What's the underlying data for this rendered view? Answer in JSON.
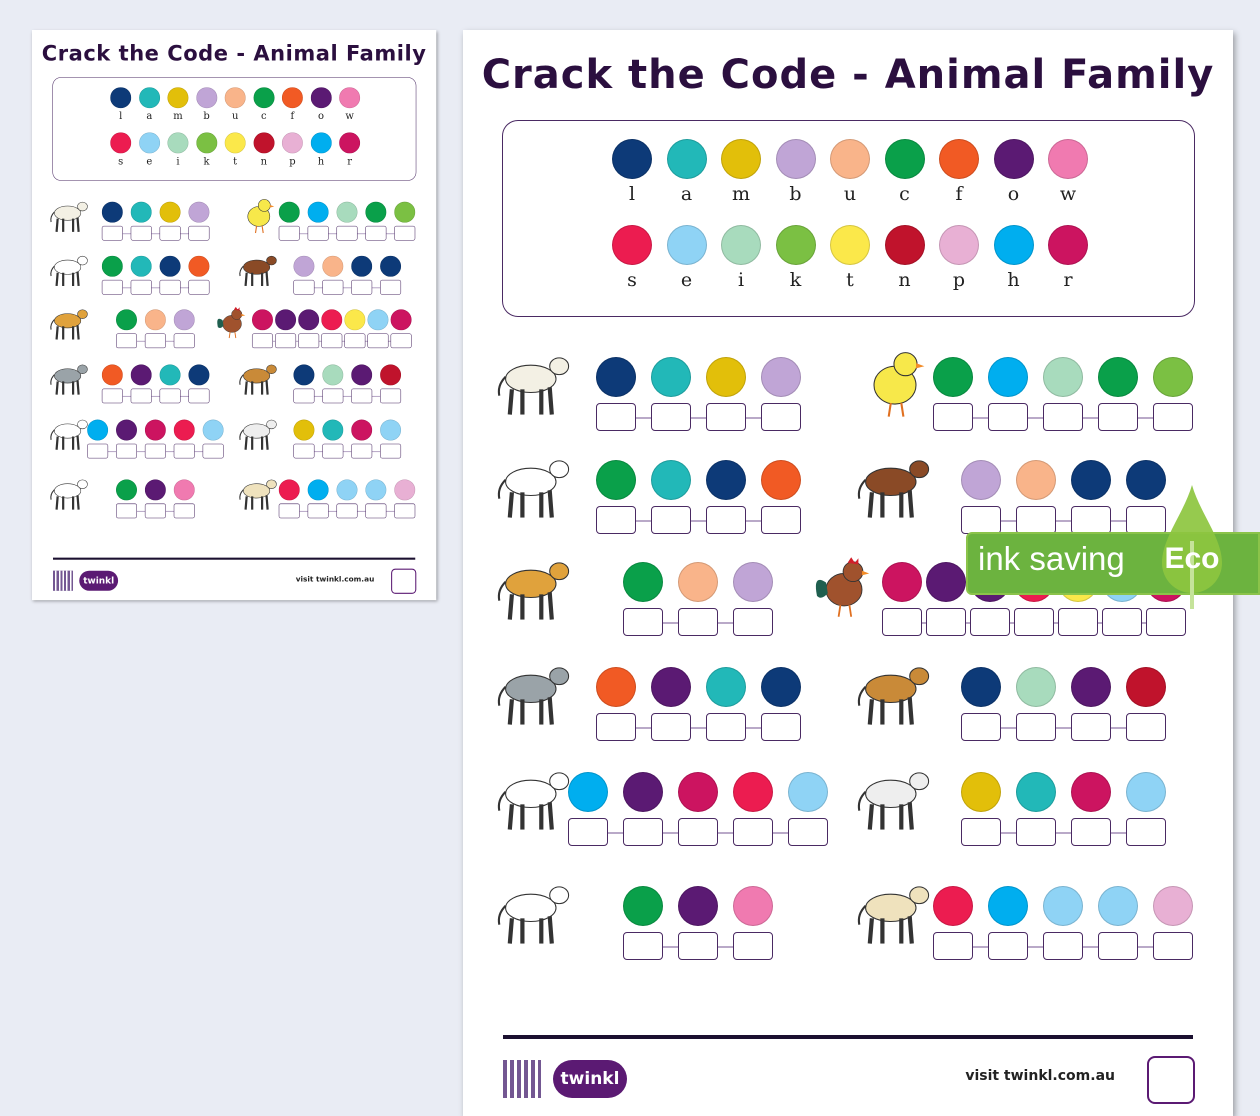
{
  "title": "Crack the Code - Animal Family",
  "key": [
    [
      {
        "letter": "l",
        "color": "#0d3a78"
      },
      {
        "letter": "a",
        "color": "#22b8b8"
      },
      {
        "letter": "m",
        "color": "#e2bf0a"
      },
      {
        "letter": "b",
        "color": "#c0a5d6"
      },
      {
        "letter": "u",
        "color": "#f9b48a"
      },
      {
        "letter": "c",
        "color": "#0aa04a"
      },
      {
        "letter": "f",
        "color": "#f15a24"
      },
      {
        "letter": "o",
        "color": "#5b1a73"
      },
      {
        "letter": "w",
        "color": "#f07ab0"
      }
    ],
    [
      {
        "letter": "s",
        "color": "#ec1c50"
      },
      {
        "letter": "e",
        "color": "#8fd3f5"
      },
      {
        "letter": "i",
        "color": "#a8dbbd"
      },
      {
        "letter": "k",
        "color": "#7bc043"
      },
      {
        "letter": "t",
        "color": "#fbe84a"
      },
      {
        "letter": "n",
        "color": "#c0132c"
      },
      {
        "letter": "p",
        "color": "#e8b0d4"
      },
      {
        "letter": "h",
        "color": "#00aeef"
      },
      {
        "letter": "r",
        "color": "#cc1460"
      }
    ]
  ],
  "puzzles": [
    [
      {
        "animal_icon": "lamb-icon",
        "code": [
          "#0d3a78",
          "#22b8b8",
          "#e2bf0a",
          "#c0a5d6"
        ]
      },
      {
        "animal_icon": "chick-icon",
        "code": [
          "#0aa04a",
          "#00aeef",
          "#a8dbbd",
          "#0aa04a",
          "#7bc043"
        ]
      }
    ],
    [
      {
        "animal_icon": "calf-icon",
        "code": [
          "#0aa04a",
          "#22b8b8",
          "#0d3a78",
          "#f15a24"
        ]
      },
      {
        "animal_icon": "bull-icon",
        "code": [
          "#c0a5d6",
          "#f9b48a",
          "#0d3a78",
          "#0d3a78"
        ]
      }
    ],
    [
      {
        "animal_icon": "cub-icon",
        "code": [
          "#0aa04a",
          "#f9b48a",
          "#c0a5d6"
        ]
      },
      {
        "animal_icon": "rooster-icon",
        "code": [
          "#cc1460",
          "#5b1a73",
          "#5b1a73",
          "#ec1c50",
          "#fbe84a",
          "#8fd3f5",
          "#cc1460"
        ]
      }
    ],
    [
      {
        "animal_icon": "foal-icon",
        "code": [
          "#f15a24",
          "#5b1a73",
          "#22b8b8",
          "#0d3a78"
        ]
      },
      {
        "animal_icon": "lion-icon",
        "code": [
          "#0d3a78",
          "#a8dbbd",
          "#5b1a73",
          "#c0132c"
        ]
      }
    ],
    [
      {
        "animal_icon": "horse-icon",
        "code": [
          "#00aeef",
          "#5b1a73",
          "#cc1460",
          "#ec1c50",
          "#8fd3f5"
        ]
      },
      {
        "animal_icon": "mare-icon",
        "code": [
          "#e2bf0a",
          "#22b8b8",
          "#cc1460",
          "#8fd3f5"
        ]
      }
    ],
    [
      {
        "animal_icon": "cow-icon",
        "code": [
          "#0aa04a",
          "#5b1a73",
          "#f07ab0"
        ]
      },
      {
        "animal_icon": "sheep-icon",
        "code": [
          "#ec1c50",
          "#00aeef",
          "#8fd3f5",
          "#8fd3f5",
          "#e8b0d4"
        ]
      }
    ]
  ],
  "footer": {
    "logo": "twinkl",
    "visit": "visit twinkl.com.au"
  },
  "eco_badge": {
    "text": "ink saving",
    "label": "Eco",
    "color": "#6cb33f"
  }
}
